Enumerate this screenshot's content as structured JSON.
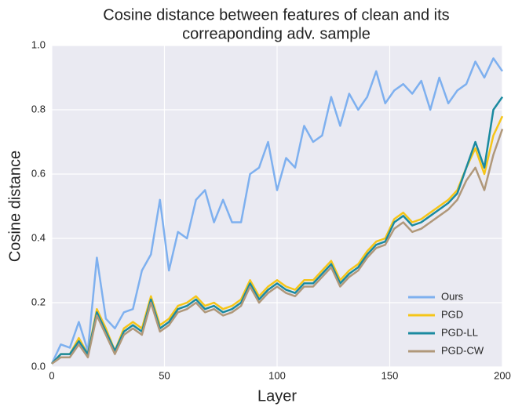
{
  "chart_data": {
    "type": "line",
    "title": [
      "Cosine distance between features of clean  and its",
      "correaponding  adv. sample"
    ],
    "xlabel": "Layer",
    "ylabel": "Cosine distance",
    "x": [
      0,
      4,
      8,
      12,
      16,
      20,
      24,
      28,
      32,
      36,
      40,
      44,
      48,
      52,
      56,
      60,
      64,
      68,
      72,
      76,
      80,
      84,
      88,
      92,
      96,
      100,
      104,
      108,
      112,
      116,
      120,
      124,
      128,
      132,
      136,
      140,
      144,
      148,
      152,
      156,
      160,
      164,
      168,
      172,
      176,
      180,
      184,
      188,
      192,
      196,
      200
    ],
    "xlim": [
      0,
      200
    ],
    "ylim": [
      0,
      1
    ],
    "xticks": [
      0,
      50,
      100,
      150,
      200
    ],
    "yticks": [
      {
        "value": 0,
        "label": "0.0"
      },
      0.2,
      0.4,
      0.6,
      0.8,
      {
        "value": 1,
        "label": "1.0"
      }
    ],
    "grid": true,
    "legend": "lower right",
    "series": [
      {
        "name": "Ours",
        "color": "#7eb0ef",
        "values": [
          0.01,
          0.07,
          0.06,
          0.14,
          0.05,
          0.34,
          0.15,
          0.12,
          0.17,
          0.18,
          0.3,
          0.35,
          0.52,
          0.3,
          0.42,
          0.4,
          0.52,
          0.55,
          0.45,
          0.52,
          0.45,
          0.45,
          0.6,
          0.62,
          0.7,
          0.55,
          0.65,
          0.62,
          0.75,
          0.7,
          0.72,
          0.84,
          0.75,
          0.85,
          0.8,
          0.84,
          0.92,
          0.82,
          0.86,
          0.88,
          0.85,
          0.89,
          0.8,
          0.9,
          0.82,
          0.86,
          0.88,
          0.95,
          0.9,
          0.96,
          0.92
        ]
      },
      {
        "name": "PGD",
        "color": "#f5c518",
        "values": [
          0.01,
          0.04,
          0.04,
          0.09,
          0.04,
          0.18,
          0.12,
          0.05,
          0.12,
          0.14,
          0.12,
          0.22,
          0.13,
          0.15,
          0.19,
          0.2,
          0.22,
          0.19,
          0.2,
          0.18,
          0.19,
          0.21,
          0.27,
          0.22,
          0.25,
          0.27,
          0.25,
          0.24,
          0.27,
          0.27,
          0.3,
          0.33,
          0.27,
          0.3,
          0.32,
          0.36,
          0.39,
          0.4,
          0.46,
          0.48,
          0.45,
          0.46,
          0.48,
          0.5,
          0.52,
          0.55,
          0.62,
          0.68,
          0.6,
          0.72,
          0.78
        ]
      },
      {
        "name": "PGD-LL",
        "color": "#1a8aa0",
        "values": [
          0.01,
          0.04,
          0.04,
          0.08,
          0.04,
          0.17,
          0.11,
          0.05,
          0.11,
          0.13,
          0.11,
          0.21,
          0.12,
          0.14,
          0.18,
          0.19,
          0.21,
          0.18,
          0.19,
          0.17,
          0.18,
          0.2,
          0.26,
          0.21,
          0.24,
          0.26,
          0.24,
          0.23,
          0.26,
          0.26,
          0.29,
          0.32,
          0.26,
          0.29,
          0.31,
          0.35,
          0.38,
          0.39,
          0.45,
          0.47,
          0.44,
          0.45,
          0.47,
          0.49,
          0.51,
          0.54,
          0.62,
          0.7,
          0.62,
          0.8,
          0.84
        ]
      },
      {
        "name": "PGD-CW",
        "color": "#b0987a",
        "values": [
          0.01,
          0.03,
          0.03,
          0.07,
          0.03,
          0.16,
          0.1,
          0.04,
          0.1,
          0.12,
          0.1,
          0.2,
          0.11,
          0.13,
          0.17,
          0.18,
          0.2,
          0.17,
          0.18,
          0.16,
          0.17,
          0.19,
          0.25,
          0.2,
          0.23,
          0.25,
          0.23,
          0.22,
          0.25,
          0.25,
          0.28,
          0.31,
          0.25,
          0.28,
          0.3,
          0.34,
          0.37,
          0.38,
          0.43,
          0.45,
          0.42,
          0.43,
          0.45,
          0.47,
          0.49,
          0.52,
          0.58,
          0.62,
          0.55,
          0.66,
          0.74
        ]
      }
    ]
  }
}
